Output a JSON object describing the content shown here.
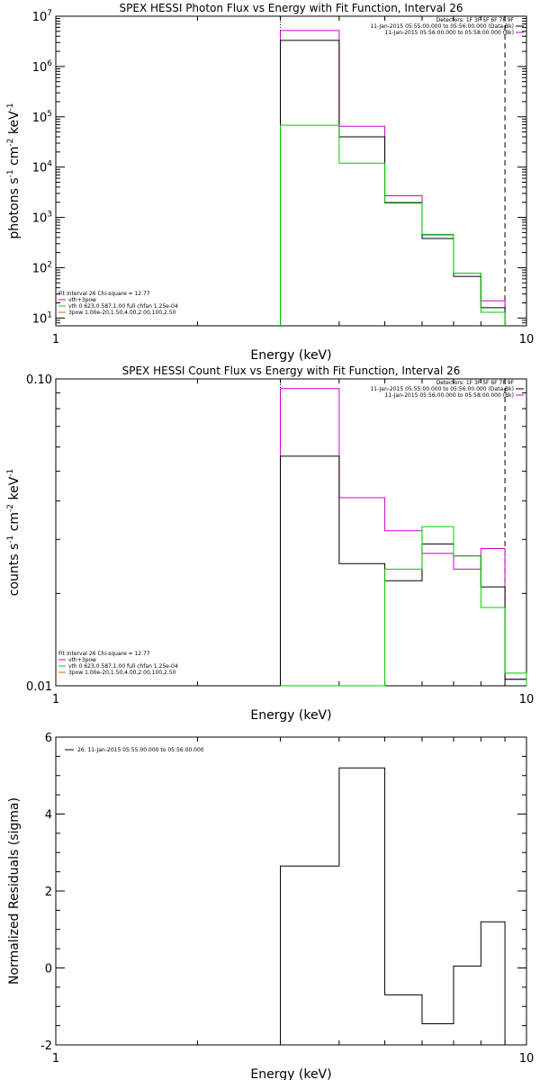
{
  "chart_data": [
    {
      "type": "line",
      "step": true,
      "title": "SPEX HESSI Photon Flux vs Energy with Fit Function, Interval 26",
      "xlabel": "Energy (keV)",
      "ylabel": "photons s",
      "ylabel_sup1": "-1",
      "ylabel_mid": " cm",
      "ylabel_sup2": "-2",
      "ylabel_end": " keV",
      "ylabel_sup3": "-1",
      "xscale": "log",
      "yscale": "log",
      "xlim": [
        1,
        10
      ],
      "ylim": [
        7,
        10000000
      ],
      "xticks": [
        {
          "v": 1,
          "label": "1"
        },
        {
          "v": 10,
          "label": "10"
        }
      ],
      "yticks": [
        {
          "v": 10,
          "label": "10",
          "sup": "1"
        },
        {
          "v": 100,
          "label": "10",
          "sup": "2"
        },
        {
          "v": 1000,
          "label": "10",
          "sup": "3"
        },
        {
          "v": 10000,
          "label": "10",
          "sup": "4"
        },
        {
          "v": 100000,
          "label": "10",
          "sup": "5"
        },
        {
          "v": 1000000,
          "label": "10",
          "sup": "6"
        },
        {
          "v": 10000000,
          "label": "10",
          "sup": "7"
        }
      ],
      "vlines": [
        {
          "x": 3.0,
          "style": "dotted"
        },
        {
          "x": 9.0,
          "style": "dashed"
        }
      ],
      "legend_top": [
        "Detectors: 1F 3F 5F 6F 7F 9F",
        "11-Jan-2015 05:55:00.000 to 05:56:00.000 (Data-Bk)",
        "11-Jan-2015 05:56:00.000 to 05:58:00.000 (Bk)"
      ],
      "legend_top_colors": [
        "",
        "#000000",
        "#cc00cc"
      ],
      "legend_bottom": [
        "Fit Interval 26   Chi-square = 12.77",
        "vth+3pow",
        "vth 0.623,0.587,1.00  full chfan 1.25e-04",
        "3pow 1.00e-20,1.50,4.00,2.00,100,2.50"
      ],
      "legend_bottom_colors": [
        "",
        "#cc00cc",
        "#00cc00",
        "#cc6600"
      ],
      "edges": [
        3.0,
        4.0,
        5.0,
        6.0,
        7.0,
        8.0,
        9.0
      ],
      "series": [
        {
          "color": "#cc00cc",
          "values": [
            5200000,
            65000,
            2700,
            450,
            78,
            22
          ]
        },
        {
          "color": "#000000",
          "values": [
            3300000,
            40000,
            1950,
            380,
            67,
            16
          ]
        },
        {
          "color": "#00cc00",
          "values": [
            68000,
            12000,
            2000,
            460,
            78,
            13
          ]
        }
      ]
    },
    {
      "type": "line",
      "step": true,
      "title": "SPEX HESSI Count Flux vs Energy with Fit Function, Interval 26",
      "xlabel": "Energy (keV)",
      "ylabel": "counts s",
      "ylabel_sup1": "-1",
      "ylabel_mid": " cm",
      "ylabel_sup2": "-2",
      "ylabel_end": " keV",
      "ylabel_sup3": "-1",
      "xscale": "log",
      "yscale": "log",
      "xlim": [
        1,
        10
      ],
      "ylim": [
        0.01,
        0.1
      ],
      "xticks": [
        {
          "v": 1,
          "label": "1"
        },
        {
          "v": 10,
          "label": "10"
        }
      ],
      "yticks": [
        {
          "v": 0.01,
          "label": "0.01"
        },
        {
          "v": 0.1,
          "label": "0.10"
        }
      ],
      "vlines": [
        {
          "x": 3.0,
          "style": "dotted"
        },
        {
          "x": 9.0,
          "style": "dashed"
        }
      ],
      "legend_top": [
        "Detectors: 1F 3F 5F 6F 7F 9F",
        "11-Jan-2015 05:55:00.000 to 05:56:00.000 (Data-Bk)",
        "11-Jan-2015 05:56:00.000 to 05:58:00.000 (Bk)"
      ],
      "legend_top_colors": [
        "",
        "#000000",
        "#cc00cc"
      ],
      "legend_bottom": [
        "Fit Interval 26   Chi-square = 12.77",
        "vth+3pow",
        "vth 0.623,0.587,1.00  full chfan 1.25e-04",
        "3pow 1.00e-20,1.50,4.00,2.00,100,2.50"
      ],
      "legend_bottom_colors": [
        "",
        "#cc00cc",
        "#00cc00",
        "#cc6600"
      ],
      "edges": [
        3.0,
        4.0,
        5.0,
        6.0,
        7.0,
        8.0,
        9.0,
        10.0
      ],
      "series": [
        {
          "color": "#cc00cc",
          "values": [
            0.093,
            0.041,
            0.032,
            0.027,
            0.024,
            0.028,
            0.0105
          ]
        },
        {
          "color": "#000000",
          "values": [
            0.056,
            0.025,
            0.022,
            0.029,
            0.0265,
            0.021,
            0.0105
          ]
        },
        {
          "color": "#00cc00",
          "values": [
            0.0095,
            0.0095,
            0.024,
            0.033,
            0.0265,
            0.018,
            0.011
          ]
        }
      ]
    },
    {
      "type": "line",
      "step": true,
      "title": "",
      "xlabel": "Energy (keV)",
      "ylabel": "Normalized Residuals (sigma)",
      "xscale": "log",
      "yscale": "linear",
      "xlim": [
        1,
        10
      ],
      "ylim": [
        -2,
        6
      ],
      "xticks": [
        {
          "v": 1,
          "label": "1"
        },
        {
          "v": 10,
          "label": "10"
        }
      ],
      "yticks": [
        {
          "v": -2,
          "label": "-2"
        },
        {
          "v": 0,
          "label": "0"
        },
        {
          "v": 2,
          "label": "2"
        },
        {
          "v": 4,
          "label": "4"
        },
        {
          "v": 6,
          "label": "6"
        }
      ],
      "legend_top": [
        "26. 11-Jan-2015 05:55:00.000 to 05:56:00.000"
      ],
      "edges": [
        3.0,
        4.0,
        5.0,
        6.0,
        7.0,
        8.0,
        9.0
      ],
      "series": [
        {
          "color": "#000000",
          "values": [
            2.65,
            5.2,
            -0.7,
            -1.45,
            0.05,
            1.2
          ]
        }
      ]
    }
  ]
}
